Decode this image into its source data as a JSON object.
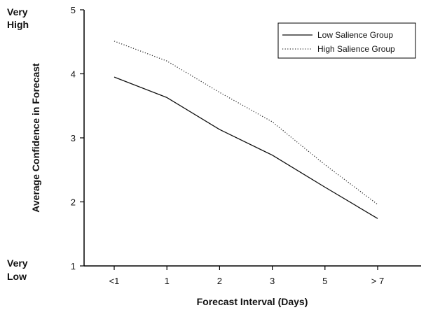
{
  "chart_data": {
    "type": "line",
    "xlabel": "Forecast Interval (Days)",
    "ylabel": "Average Confidence in Forecast",
    "categories": [
      "<1",
      "1",
      "2",
      "3",
      "5",
      "> 7"
    ],
    "ylim": [
      1,
      5
    ],
    "yticks": [
      1,
      2,
      3,
      4,
      5
    ],
    "y_extreme_labels": {
      "top": [
        "Very",
        "High"
      ],
      "bottom": [
        "Very",
        "Low"
      ]
    },
    "legend_position": "top-right",
    "grid": false,
    "series": [
      {
        "name": "Low Salience Group",
        "style": "solid",
        "color": "#111111",
        "values": [
          3.95,
          3.63,
          3.13,
          2.73,
          2.23,
          1.74
        ]
      },
      {
        "name": "High Salience Group",
        "style": "dotted",
        "color": "#333333",
        "values": [
          4.51,
          4.2,
          3.71,
          3.25,
          2.58,
          1.96
        ]
      }
    ]
  }
}
